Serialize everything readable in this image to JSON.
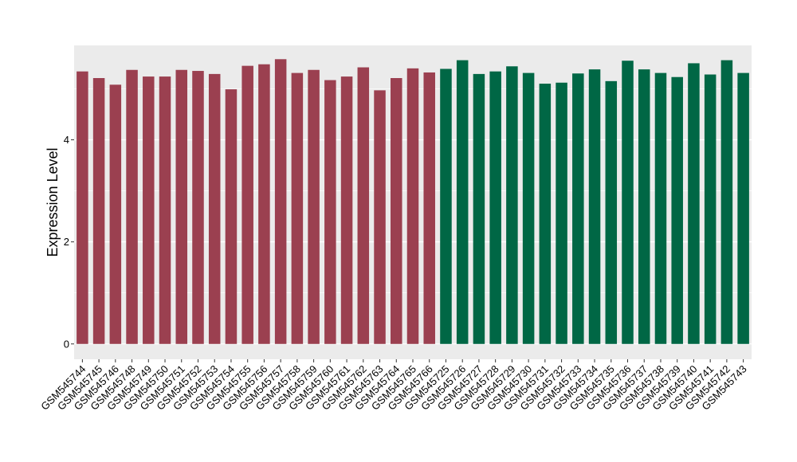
{
  "chart_data": {
    "type": "bar",
    "title": "",
    "xlabel": "",
    "ylabel": "Expression Level",
    "ylim": [
      -0.3,
      5.85
    ],
    "yticks": [
      0,
      2,
      4
    ],
    "grid": true,
    "legend": "none",
    "colors": {
      "panel_background": "#ebebeb",
      "grid": "#ffffff",
      "group_1": "#9b4050",
      "group_2": "#006745"
    },
    "categories": [
      "GSM545744",
      "GSM545745",
      "GSM545746",
      "GSM545748",
      "GSM545749",
      "GSM545750",
      "GSM545751",
      "GSM545752",
      "GSM545753",
      "GSM545754",
      "GSM545755",
      "GSM545756",
      "GSM545757",
      "GSM545758",
      "GSM545759",
      "GSM545760",
      "GSM545761",
      "GSM545762",
      "GSM545763",
      "GSM545764",
      "GSM545765",
      "GSM545766",
      "GSM545725",
      "GSM545726",
      "GSM545727",
      "GSM545728",
      "GSM545729",
      "GSM545730",
      "GSM545731",
      "GSM545732",
      "GSM545733",
      "GSM545734",
      "GSM545735",
      "GSM545736",
      "GSM545737",
      "GSM545738",
      "GSM545739",
      "GSM545740",
      "GSM545741",
      "GSM545742",
      "GSM545743"
    ],
    "values": [
      5.34,
      5.21,
      5.08,
      5.37,
      5.24,
      5.24,
      5.37,
      5.35,
      5.29,
      4.99,
      5.45,
      5.48,
      5.58,
      5.31,
      5.37,
      5.17,
      5.24,
      5.42,
      4.97,
      5.21,
      5.4,
      5.32,
      5.39,
      5.56,
      5.29,
      5.34,
      5.44,
      5.31,
      5.1,
      5.12,
      5.3,
      5.38,
      5.15,
      5.55,
      5.38,
      5.31,
      5.23,
      5.5,
      5.28,
      5.56,
      5.31
    ],
    "groups": [
      1,
      1,
      1,
      1,
      1,
      1,
      1,
      1,
      1,
      1,
      1,
      1,
      1,
      1,
      1,
      1,
      1,
      1,
      1,
      1,
      1,
      1,
      2,
      2,
      2,
      2,
      2,
      2,
      2,
      2,
      2,
      2,
      2,
      2,
      2,
      2,
      2,
      2,
      2,
      2,
      2
    ]
  }
}
